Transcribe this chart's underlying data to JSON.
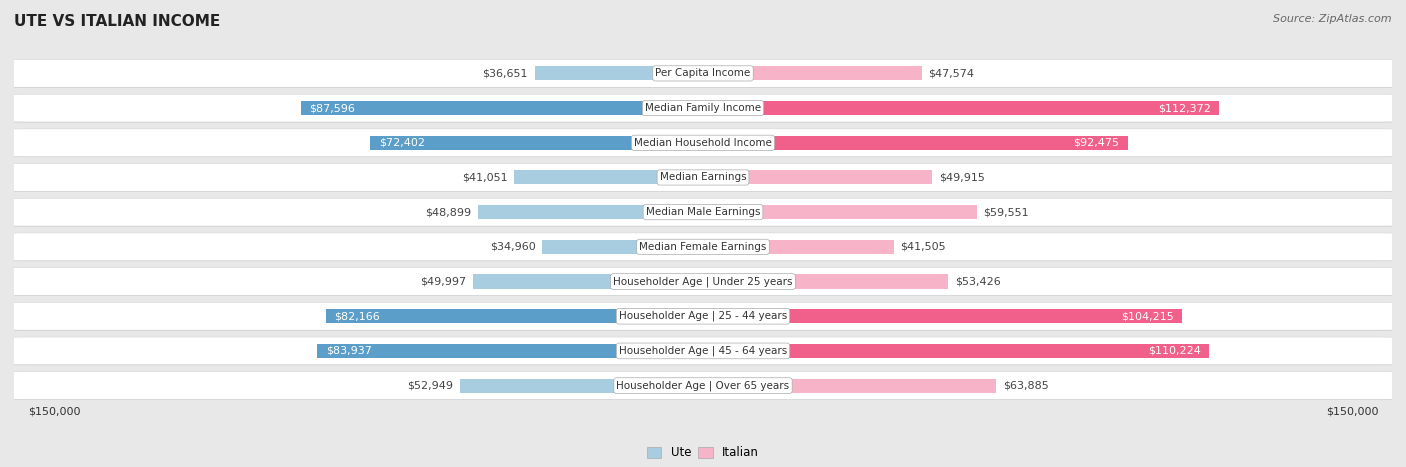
{
  "title": "Ute vs Italian Income",
  "source": "Source: ZipAtlas.com",
  "categories": [
    "Per Capita Income",
    "Median Family Income",
    "Median Household Income",
    "Median Earnings",
    "Median Male Earnings",
    "Median Female Earnings",
    "Householder Age | Under 25 years",
    "Householder Age | 25 - 44 years",
    "Householder Age | 45 - 64 years",
    "Householder Age | Over 65 years"
  ],
  "ute_values": [
    36651,
    87596,
    72402,
    41051,
    48899,
    34960,
    49997,
    82166,
    83937,
    52949
  ],
  "italian_values": [
    47574,
    112372,
    92475,
    49915,
    59551,
    41505,
    53426,
    104215,
    110224,
    63885
  ],
  "ute_color_light": "#a8cce0",
  "ute_color_dark": "#5a9ec9",
  "italian_color_light": "#f7b3c8",
  "italian_color_dark": "#f0608a",
  "max_value": 150000,
  "background_color": "#e8e8e8",
  "row_bg_color": "#ffffff",
  "row_border_color": "#cccccc",
  "title_fontsize": 11,
  "source_fontsize": 8,
  "bar_label_fontsize": 8,
  "category_fontsize": 7.5,
  "axis_label_fontsize": 8,
  "dark_threshold": 65000
}
